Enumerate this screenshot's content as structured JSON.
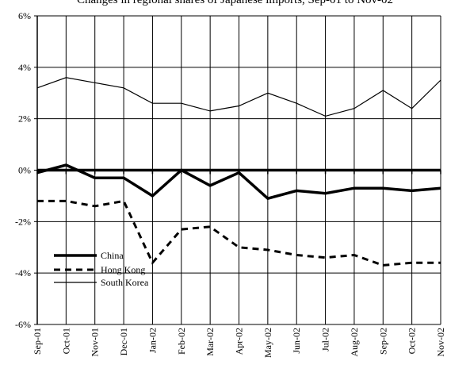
{
  "chart_data": {
    "type": "line",
    "title": "Changes in regional shares of Japanese imports, Sep-01 to Nov-02",
    "categories": [
      "Sep-01",
      "Oct-01",
      "Nov-01",
      "Dec-01",
      "Jan-02",
      "Feb-02",
      "Mar-02",
      "Apr-02",
      "May-02",
      "Jun-02",
      "Jul-02",
      "Aug-02",
      "Sep-02",
      "Oct-02",
      "Nov-02"
    ],
    "y_ticks": [
      "6%",
      "4%",
      "2%",
      "0%",
      "-2%",
      "-4%",
      "-6%"
    ],
    "y_tick_values": [
      6,
      4,
      2,
      0,
      -2,
      -4,
      -6
    ],
    "ylim": [
      -6,
      6
    ],
    "y_unit": "percent",
    "grid": true,
    "legend_position": "bottom-left",
    "series": [
      {
        "name": "China",
        "style": "thick-solid",
        "color": "#000000",
        "values": [
          -0.1,
          0.2,
          -0.3,
          -0.3,
          -1.0,
          0.0,
          -0.6,
          -0.1,
          -1.1,
          -0.8,
          -0.9,
          -0.7,
          -0.7,
          -0.8,
          -0.7
        ]
      },
      {
        "name": "Hong Kong",
        "style": "thick-dashed",
        "color": "#000000",
        "values": [
          -1.2,
          -1.2,
          -1.4,
          -1.2,
          -3.6,
          -2.3,
          -2.2,
          -3.0,
          -3.1,
          -3.3,
          -3.4,
          -3.3,
          -3.7,
          -3.6,
          -3.6
        ]
      },
      {
        "name": "South Korea",
        "style": "thin-solid",
        "color": "#000000",
        "values": [
          3.2,
          3.6,
          3.4,
          3.2,
          2.6,
          2.6,
          2.3,
          2.5,
          3.0,
          2.6,
          2.1,
          2.4,
          3.1,
          2.4,
          3.5
        ]
      }
    ]
  }
}
